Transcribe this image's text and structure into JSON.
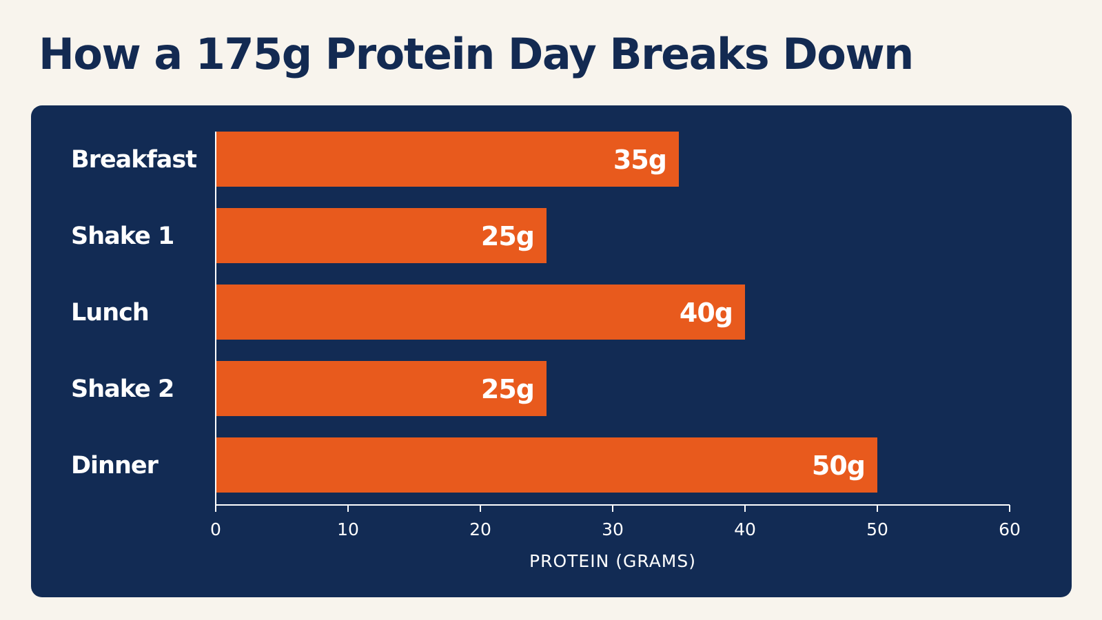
{
  "title": "How a 175g Protein Day Breaks Down",
  "colors": {
    "background": "#f8f4ed",
    "title": "#132a52",
    "panel": "#122b54",
    "bar": "#e85a1d",
    "text": "#ffffff"
  },
  "chart_data": {
    "type": "bar",
    "orientation": "horizontal",
    "categories": [
      "Breakfast",
      "Shake 1",
      "Lunch",
      "Shake 2",
      "Dinner"
    ],
    "values": [
      35,
      25,
      40,
      25,
      50
    ],
    "value_labels": [
      "35g",
      "25g",
      "40g",
      "25g",
      "50g"
    ],
    "xlabel": "PROTEIN (GRAMS)",
    "ylabel": "",
    "xlim": [
      0,
      60
    ],
    "xticks": [
      0,
      10,
      20,
      30,
      40,
      50,
      60
    ],
    "xtick_labels": [
      "0",
      "10",
      "20",
      "30",
      "40",
      "50",
      "60"
    ],
    "grid": false,
    "legend": "none"
  }
}
